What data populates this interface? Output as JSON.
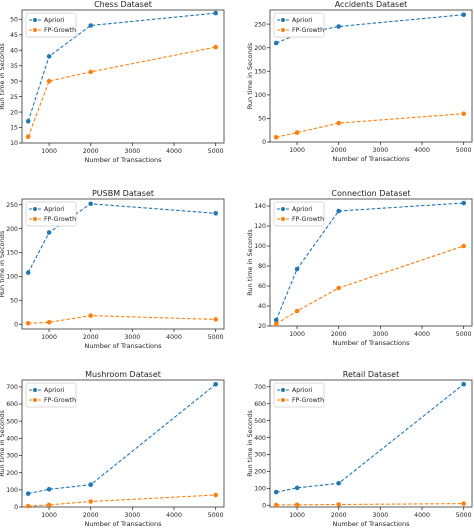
{
  "chart_data": [
    {
      "type": "line",
      "title": "Chess Dataset",
      "xlabel": "Number of Transactions",
      "ylabel": "Run time in Seconds",
      "xlim": [
        350,
        5200
      ],
      "ylim": [
        10,
        53
      ],
      "xticks": [
        1000,
        2000,
        3000,
        4000,
        5000
      ],
      "yticks": [
        10,
        15,
        20,
        25,
        30,
        35,
        40,
        45,
        50
      ],
      "x": [
        500,
        1000,
        2000,
        5000
      ],
      "legend": "top-left",
      "series": [
        {
          "name": "Apriori",
          "values": [
            17,
            38,
            48,
            52
          ],
          "color": "#1f77b4"
        },
        {
          "name": "FP-Growth",
          "values": [
            12,
            30,
            33,
            41
          ],
          "color": "#ff7f0e"
        }
      ]
    },
    {
      "type": "line",
      "title": "Accidents Dataset",
      "xlabel": "Number of Transactions",
      "ylabel": "Run time in Seconds",
      "xlim": [
        350,
        5200
      ],
      "ylim": [
        0,
        280
      ],
      "xticks": [
        1000,
        2000,
        3000,
        4000,
        5000
      ],
      "yticks": [
        0,
        50,
        100,
        150,
        200,
        250
      ],
      "x": [
        500,
        1000,
        2000,
        5000
      ],
      "legend": "top-left",
      "series": [
        {
          "name": "Apriori",
          "values": [
            210,
            228,
            245,
            270
          ],
          "color": "#1f77b4"
        },
        {
          "name": "FP-Growth",
          "values": [
            10,
            20,
            40,
            60
          ],
          "color": "#ff7f0e"
        }
      ]
    },
    {
      "type": "line",
      "title": "PUSBM Dataset",
      "xlabel": "Number of Transactions",
      "ylabel": "Run time in Seconds",
      "xlim": [
        350,
        5200
      ],
      "ylim": [
        -10,
        262
      ],
      "xticks": [
        1000,
        2000,
        3000,
        4000,
        5000
      ],
      "yticks": [
        0,
        50,
        100,
        150,
        200,
        250
      ],
      "x": [
        500,
        1000,
        2000,
        5000
      ],
      "legend": "top-left",
      "series": [
        {
          "name": "Apriori",
          "values": [
            108,
            192,
            252,
            232
          ],
          "color": "#1f77b4"
        },
        {
          "name": "FP-Growth",
          "values": [
            2,
            4,
            18,
            10
          ],
          "color": "#ff7f0e"
        }
      ]
    },
    {
      "type": "line",
      "title": "Connection Dataset",
      "xlabel": "Number of Transactions",
      "ylabel": "Run time in Seconds",
      "xlim": [
        350,
        5200
      ],
      "ylim": [
        20,
        147
      ],
      "xticks": [
        1000,
        2000,
        3000,
        4000,
        5000
      ],
      "yticks": [
        20,
        40,
        60,
        80,
        100,
        120,
        140
      ],
      "x": [
        500,
        1000,
        2000,
        5000
      ],
      "legend": "top-left",
      "series": [
        {
          "name": "Apriori",
          "values": [
            26,
            77,
            135,
            143
          ],
          "color": "#1f77b4"
        },
        {
          "name": "FP-Growth",
          "values": [
            22,
            35,
            58,
            100
          ],
          "color": "#ff7f0e"
        }
      ]
    },
    {
      "type": "line",
      "title": "Mushroom Dataset",
      "xlabel": "Number of Transactions",
      "ylabel": "Run time in Seconds",
      "xlim": [
        350,
        5200
      ],
      "ylim": [
        0,
        740
      ],
      "xticks": [
        1000,
        2000,
        3000,
        4000,
        5000
      ],
      "yticks": [
        0,
        100,
        200,
        300,
        400,
        500,
        600,
        700
      ],
      "x": [
        500,
        1000,
        2000,
        5000
      ],
      "legend": "top-left",
      "series": [
        {
          "name": "Apriori",
          "values": [
            78,
            103,
            130,
            715
          ],
          "color": "#1f77b4"
        },
        {
          "name": "FP-Growth",
          "values": [
            5,
            12,
            32,
            70
          ],
          "color": "#ff7f0e"
        }
      ]
    },
    {
      "type": "line",
      "title": "Retail Dataset",
      "xlabel": "Number of Transactions",
      "ylabel": "Run time in Seconds",
      "xlim": [
        350,
        5200
      ],
      "ylim": [
        -10,
        740
      ],
      "xticks": [
        1000,
        2000,
        3000,
        4000,
        5000
      ],
      "yticks": [
        0,
        100,
        200,
        300,
        400,
        500,
        600,
        700
      ],
      "x": [
        500,
        1000,
        2000,
        5000
      ],
      "legend": "top-left",
      "series": [
        {
          "name": "Apriori",
          "values": [
            78,
            103,
            130,
            715
          ],
          "color": "#1f77b4"
        },
        {
          "name": "FP-Growth",
          "values": [
            2,
            3,
            5,
            10
          ],
          "color": "#ff7f0e"
        }
      ]
    }
  ]
}
